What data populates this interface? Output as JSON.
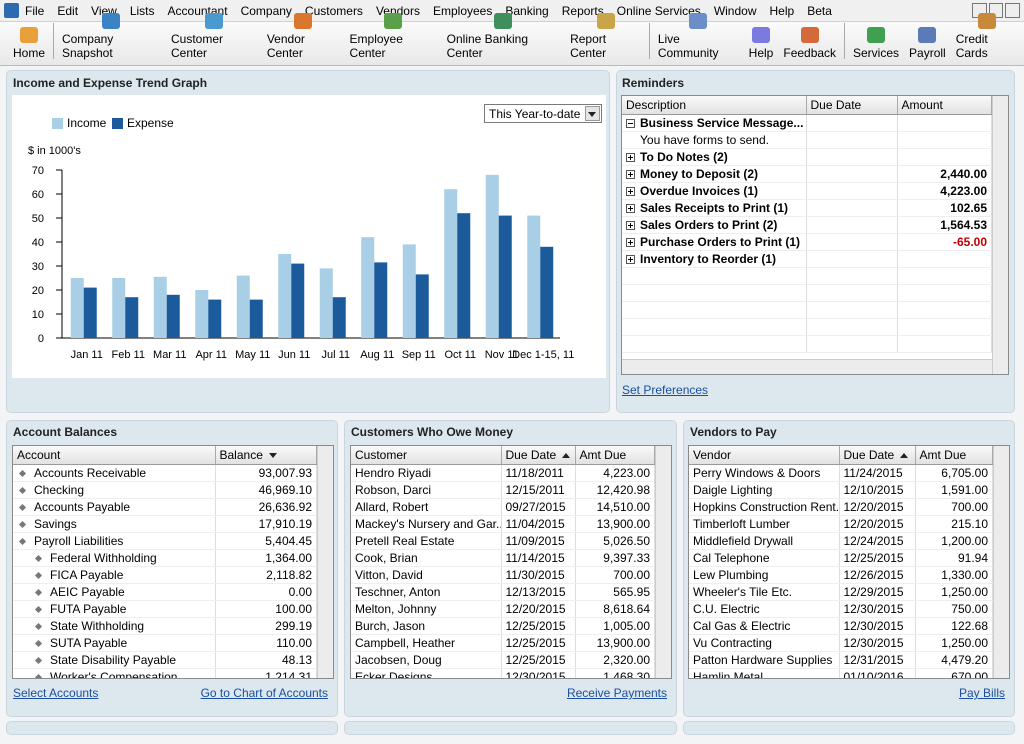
{
  "menu": [
    "File",
    "Edit",
    "View",
    "Lists",
    "Accountant",
    "Company",
    "Customers",
    "Vendors",
    "Employees",
    "Banking",
    "Reports",
    "Online Services",
    "Window",
    "Help",
    "Beta"
  ],
  "toolbar": [
    "Home",
    "Company Snapshot",
    "Customer Center",
    "Vendor Center",
    "Employee Center",
    "Online Banking Center",
    "Report Center",
    "Live Community",
    "Help",
    "Feedback",
    "Services",
    "Payroll",
    "Credit Cards"
  ],
  "chart_data": {
    "type": "bar",
    "title": "Income and Expense Trend Graph",
    "period": "This Year-to-date",
    "ylabel": "$ in 1000's",
    "categories": [
      "Jan 11",
      "Feb 11",
      "Mar 11",
      "Apr 11",
      "May 11",
      "Jun 11",
      "Jul 11",
      "Aug 11",
      "Sep 11",
      "Oct 11",
      "Nov 11",
      "Dec 1-15, 11"
    ],
    "series": [
      {
        "name": "Income",
        "color": "#a9cfe6",
        "values": [
          25,
          25,
          25.5,
          20,
          26,
          35,
          29,
          42,
          39,
          62,
          68,
          51
        ]
      },
      {
        "name": "Expense",
        "color": "#1b5b9b",
        "values": [
          21,
          17,
          18,
          16,
          16,
          31,
          17,
          31.5,
          26.5,
          52,
          51,
          38
        ]
      }
    ],
    "ylim": [
      0,
      70
    ],
    "yticks": [
      0,
      10,
      20,
      30,
      40,
      50,
      60,
      70
    ]
  },
  "reminders": {
    "title": "Reminders",
    "columns": [
      "Description",
      "Due Date",
      "Amount"
    ],
    "rows": [
      {
        "label": "Business Service Message...",
        "expanded": true,
        "items": [
          "You have forms to send."
        ]
      },
      {
        "label": "To Do Notes (2)"
      },
      {
        "label": "Money to Deposit (2)",
        "amount": "2,440.00"
      },
      {
        "label": "Overdue Invoices (1)",
        "amount": "4,223.00"
      },
      {
        "label": "Sales Receipts to Print (1)",
        "amount": "102.65"
      },
      {
        "label": "Sales Orders to Print (2)",
        "amount": "1,564.53"
      },
      {
        "label": "Purchase Orders to Print (1)",
        "amount": "-65.00"
      },
      {
        "label": "Inventory to Reorder (1)"
      }
    ],
    "link": "Set Preferences"
  },
  "account_balances": {
    "title": "Account Balances",
    "columns": [
      "Account",
      "Balance"
    ],
    "rows": [
      {
        "name": "Accounts Receivable",
        "balance": "93,007.93",
        "level": 0
      },
      {
        "name": "Checking",
        "balance": "46,969.10",
        "level": 0
      },
      {
        "name": "Accounts Payable",
        "balance": "26,636.92",
        "level": 0
      },
      {
        "name": "Savings",
        "balance": "17,910.19",
        "level": 0
      },
      {
        "name": "Payroll Liabilities",
        "balance": "5,404.45",
        "level": 0
      },
      {
        "name": "Federal Withholding",
        "balance": "1,364.00",
        "level": 1
      },
      {
        "name": "FICA Payable",
        "balance": "2,118.82",
        "level": 1
      },
      {
        "name": "AEIC Payable",
        "balance": "0.00",
        "level": 1
      },
      {
        "name": "FUTA Payable",
        "balance": "100.00",
        "level": 1
      },
      {
        "name": "State Withholding",
        "balance": "299.19",
        "level": 1
      },
      {
        "name": "SUTA Payable",
        "balance": "110.00",
        "level": 1
      },
      {
        "name": "State Disability Payable",
        "balance": "48.13",
        "level": 1
      },
      {
        "name": "Worker's Compensation",
        "balance": "1,214.31",
        "level": 1
      }
    ],
    "links": [
      "Select Accounts",
      "Go to Chart of Accounts"
    ]
  },
  "customers": {
    "title": "Customers Who Owe Money",
    "columns": [
      "Customer",
      "Due Date",
      "Amt Due"
    ],
    "rows": [
      [
        "Hendro Riyadi",
        "11/18/2011",
        "4,223.00"
      ],
      [
        "Robson, Darci",
        "12/15/2011",
        "12,420.98"
      ],
      [
        "Allard, Robert",
        "09/27/2015",
        "14,510.00"
      ],
      [
        "Mackey's Nursery and Gar...",
        "11/04/2015",
        "13,900.00"
      ],
      [
        "Pretell Real Estate",
        "11/09/2015",
        "5,026.50"
      ],
      [
        "Cook, Brian",
        "11/14/2015",
        "9,397.33"
      ],
      [
        "Vitton, David",
        "11/30/2015",
        "700.00"
      ],
      [
        "Teschner, Anton",
        "12/13/2015",
        "565.95"
      ],
      [
        "Melton, Johnny",
        "12/20/2015",
        "8,618.64"
      ],
      [
        "Burch, Jason",
        "12/25/2015",
        "1,005.00"
      ],
      [
        "Campbell, Heather",
        "12/25/2015",
        "13,900.00"
      ],
      [
        "Jacobsen, Doug",
        "12/25/2015",
        "2,320.00"
      ],
      [
        "Ecker Designs",
        "12/30/2015",
        "1,468.30"
      ]
    ],
    "links": [
      "Receive Payments"
    ]
  },
  "vendors": {
    "title": "Vendors to Pay",
    "columns": [
      "Vendor",
      "Due Date",
      "Amt Due"
    ],
    "rows": [
      [
        "Perry Windows & Doors",
        "11/24/2015",
        "6,705.00"
      ],
      [
        "Daigle Lighting",
        "12/10/2015",
        "1,591.00"
      ],
      [
        "Hopkins Construction Rent...",
        "12/20/2015",
        "700.00"
      ],
      [
        "Timberloft Lumber",
        "12/20/2015",
        "215.10"
      ],
      [
        "Middlefield Drywall",
        "12/24/2015",
        "1,200.00"
      ],
      [
        "Cal Telephone",
        "12/25/2015",
        "91.94"
      ],
      [
        "Lew Plumbing",
        "12/26/2015",
        "1,330.00"
      ],
      [
        "Wheeler's Tile Etc.",
        "12/29/2015",
        "1,250.00"
      ],
      [
        "C.U. Electric",
        "12/30/2015",
        "750.00"
      ],
      [
        "Cal Gas & Electric",
        "12/30/2015",
        "122.68"
      ],
      [
        "Vu Contracting",
        "12/30/2015",
        "1,250.00"
      ],
      [
        "Patton Hardware Supplies",
        "12/31/2015",
        "4,479.20"
      ],
      [
        "Hamlin Metal",
        "01/10/2016",
        "670.00"
      ]
    ],
    "links": [
      "Pay Bills"
    ]
  }
}
